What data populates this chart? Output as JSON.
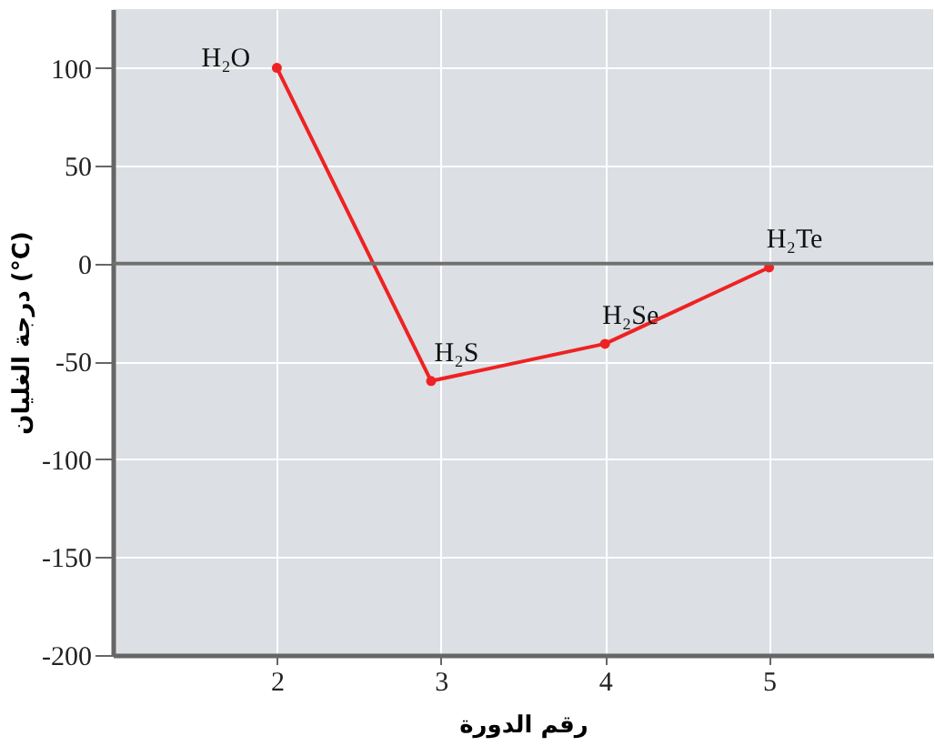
{
  "chart_data": {
    "type": "line",
    "xlabel": "رقم الدورة",
    "ylabel": "درجة الغليان (°C)",
    "x": [
      2,
      2.94,
      4,
      5
    ],
    "series": [
      {
        "color": "#ee2222",
        "values": [
          100,
          -60,
          -41,
          -2
        ]
      }
    ],
    "annotations": [
      {
        "text": "H₂O",
        "x": 2,
        "y": 100
      },
      {
        "text": "H₂S",
        "x": 2.94,
        "y": -60
      },
      {
        "text": "H₂Se",
        "x": 4,
        "y": -41
      },
      {
        "text": "H₂Te",
        "x": 5,
        "y": -2
      }
    ],
    "xlim": [
      1,
      6
    ],
    "xticks": [
      2,
      3,
      4,
      5
    ],
    "ylim": [
      -200,
      130
    ],
    "yticks": [
      -200,
      -150,
      -100,
      -50,
      0,
      50,
      100
    ],
    "ref_lines": [
      {
        "axis": "y",
        "value": 0,
        "color": "#707070"
      }
    ],
    "grid": true,
    "marker": "circle",
    "line_style": "solid"
  }
}
